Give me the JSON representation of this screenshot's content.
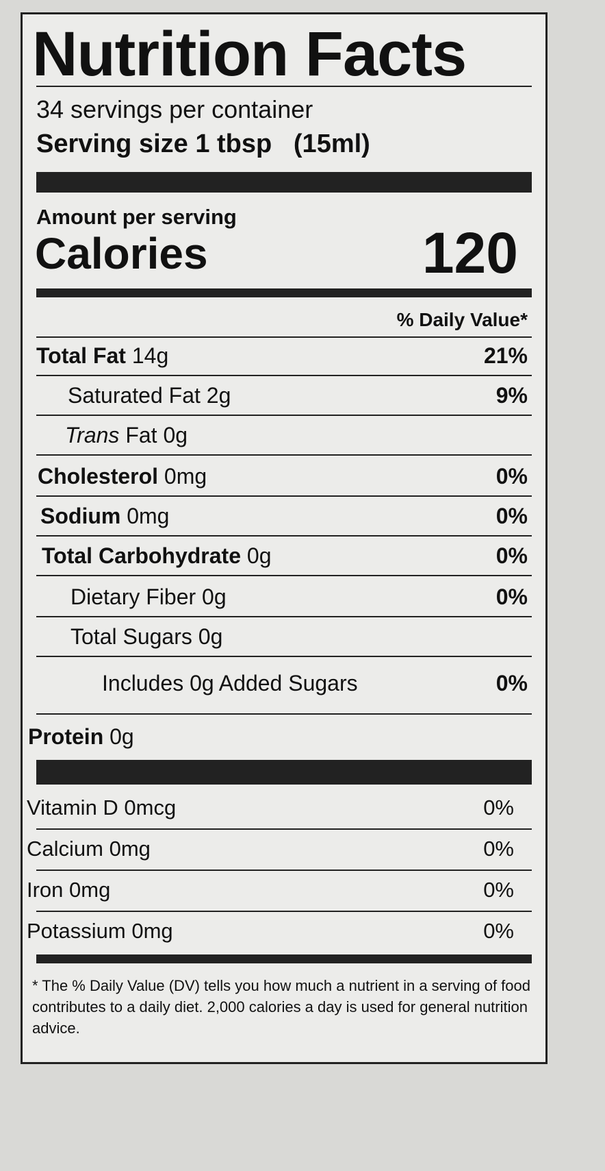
{
  "title": "Nutrition Facts",
  "servings_per_container": "34 servings per container",
  "serving_size_label": "Serving size",
  "serving_size_value": "1 tbsp   (15ml)",
  "amount_per_serving": "Amount per serving",
  "calories_label": "Calories",
  "calories_value": "120",
  "daily_value_header": "% Daily Value*",
  "nutrients": [
    {
      "name": "Total Fat",
      "amount": "14g",
      "dv": "21%"
    },
    {
      "name": "Saturated Fat",
      "amount": "2g",
      "dv": "9%"
    },
    {
      "name": "Trans",
      "name_rest": "Fat",
      "amount": "0g",
      "dv": ""
    },
    {
      "name": "Cholesterol",
      "amount": "0mg",
      "dv": "0%"
    },
    {
      "name": "Sodium",
      "amount": "0mg",
      "dv": "0%"
    },
    {
      "name": "Total Carbohydrate",
      "amount": "0g",
      "dv": "0%"
    },
    {
      "name": "Dietary Fiber",
      "amount": "0g",
      "dv": "0%"
    },
    {
      "name": "Total Sugars",
      "amount": "0g",
      "dv": ""
    },
    {
      "name": "Includes 0g Added Sugars",
      "amount": "",
      "dv": "0%"
    },
    {
      "name": "Protein",
      "amount": "0g",
      "dv": ""
    }
  ],
  "vitamins": [
    {
      "name": "Vitamin D 0mcg",
      "dv": "0%"
    },
    {
      "name": "Calcium 0mg",
      "dv": "0%"
    },
    {
      "name": "Iron 0mg",
      "dv": "0%"
    },
    {
      "name": "Potassium 0mg",
      "dv": "0%"
    }
  ],
  "footnote": "* The % Daily Value (DV) tells you how much a nutrient in a serving of food contributes to a daily diet. 2,000 calories a day is used for general nutrition advice."
}
